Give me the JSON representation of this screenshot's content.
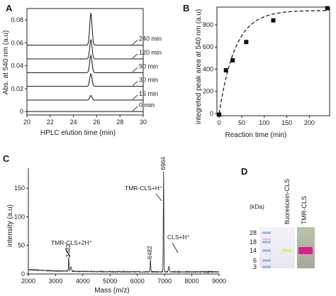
{
  "chart_data": [
    {
      "panel": "A",
      "type": "line",
      "xlabel": "HPLC elution time (min)",
      "ylabel": "Abs. at 540 nm  (a.u)",
      "xlim": [
        20,
        30
      ],
      "ylim": [
        -0.003,
        0.09
      ],
      "xticks": [
        "20",
        "22",
        "24",
        "26",
        "28",
        "30"
      ],
      "yticks": [
        "0",
        "0.02",
        "0.04",
        "0.06",
        "0.08"
      ],
      "peak_center": 25.5,
      "series": [
        {
          "name": "0 min",
          "baseline": 0.0,
          "peak_height": 0.0
        },
        {
          "name": "15 min",
          "baseline": 0.01,
          "peak_height": 0.004
        },
        {
          "name": "30 min",
          "baseline": 0.022,
          "peak_height": 0.011
        },
        {
          "name": "90 min",
          "baseline": 0.034,
          "peak_height": 0.015
        },
        {
          "name": "120 min",
          "baseline": 0.046,
          "peak_height": 0.017
        },
        {
          "name": "240 min",
          "baseline": 0.058,
          "peak_height": 0.028
        }
      ]
    },
    {
      "panel": "B",
      "type": "scatter",
      "xlabel": "Reaction time (min)",
      "ylabel": "integreted peak area at 540 nm  (a.u)",
      "xlim": [
        -5,
        245
      ],
      "ylim": [
        -20,
        960
      ],
      "xticks": [
        "0",
        "50",
        "100",
        "150",
        "200"
      ],
      "yticks": [
        "0",
        "200",
        "400",
        "600",
        "800"
      ],
      "points": [
        {
          "x": 0,
          "y": -10
        },
        {
          "x": 15,
          "y": 390
        },
        {
          "x": 30,
          "y": 480
        },
        {
          "x": 60,
          "y": 645
        },
        {
          "x": 120,
          "y": 840
        },
        {
          "x": 240,
          "y": 950
        }
      ],
      "fit": {
        "style": "dashed",
        "ymax": 930,
        "rate": 0.028
      }
    },
    {
      "panel": "C",
      "type": "line",
      "xlabel": "Mass (m/z)",
      "ylabel": "intensity (a.u)",
      "xlim": [
        2000,
        9000
      ],
      "ylim": [
        0,
        185
      ],
      "xticks": [
        "2000",
        "3000",
        "4000",
        "5000",
        "6000",
        "7000",
        "8000",
        "9000"
      ],
      "yticks": [
        "0",
        "50",
        "100",
        "150"
      ],
      "peaks": [
        {
          "x": 3482,
          "y": 25,
          "label": "3482",
          "annotation": "TMR-CLS+2H⁺"
        },
        {
          "x": 6482,
          "y": 22,
          "label": "6482",
          "annotation": "CLS+H⁺"
        },
        {
          "x": 6964,
          "y": 178,
          "label": "6964",
          "annotation": "TMR-CLS+H⁺"
        }
      ]
    },
    {
      "panel": "D",
      "type": "gel",
      "unit_label": "(kDa)",
      "ladder": [
        "28",
        "18",
        "14",
        "6",
        "3"
      ],
      "lanes": [
        "fluorescein-CLS",
        "TMR-CLS"
      ]
    }
  ]
}
